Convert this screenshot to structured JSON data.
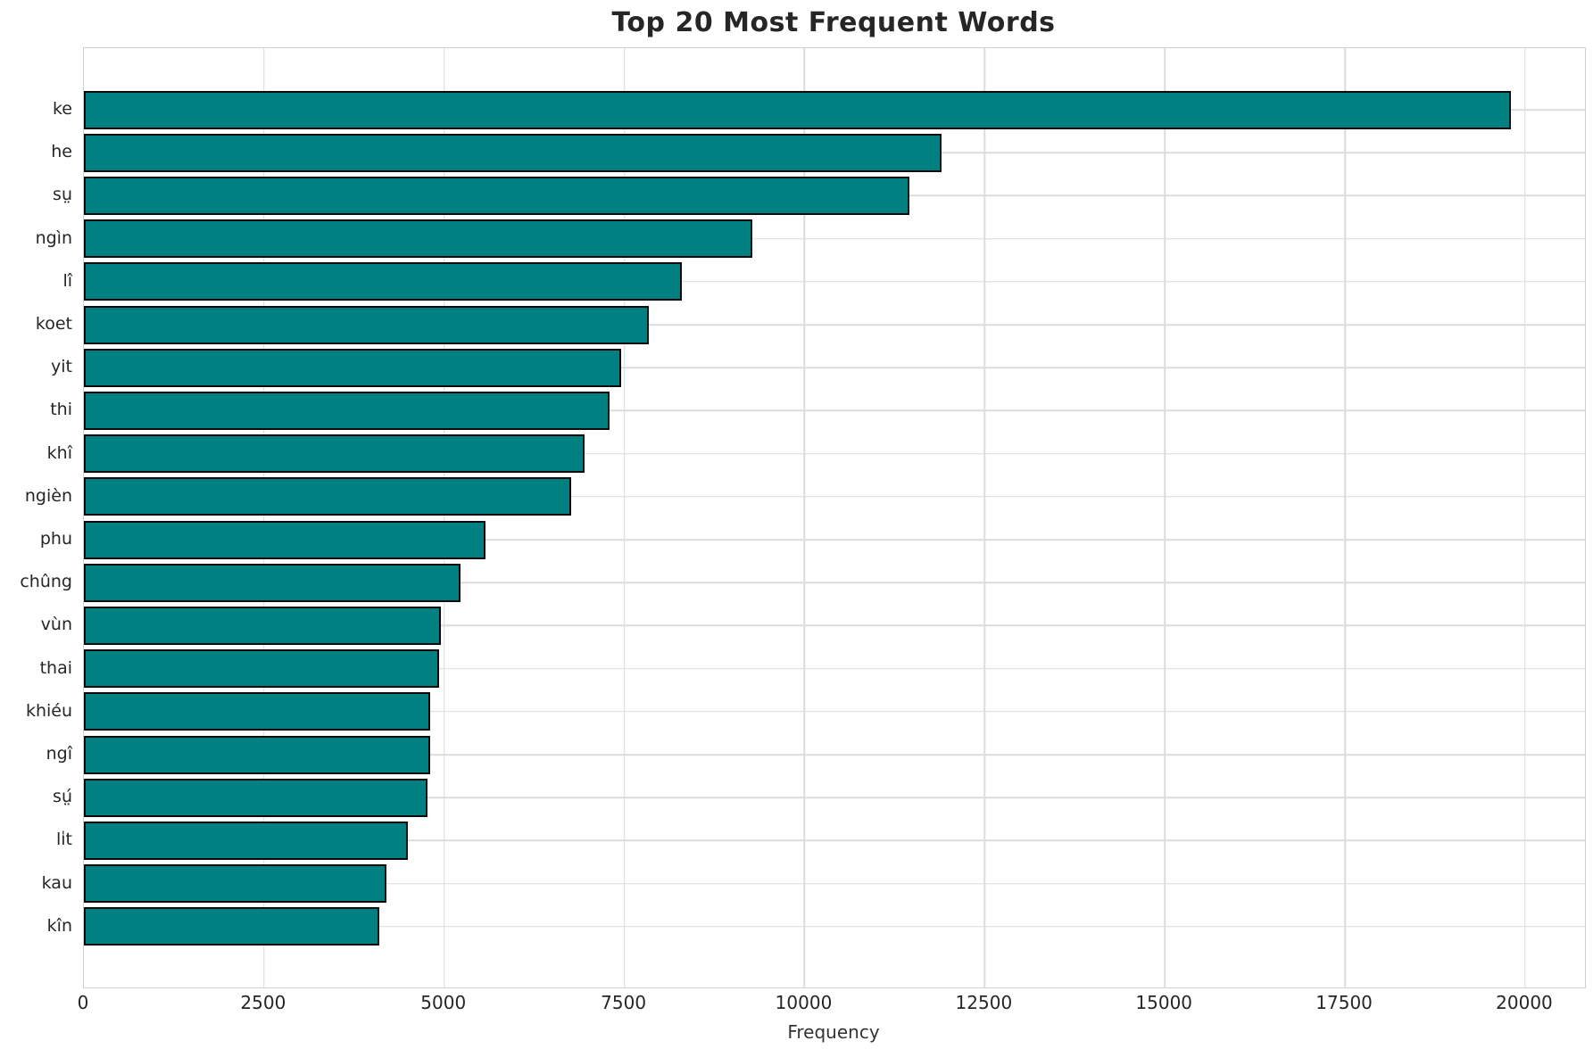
{
  "chart_data": {
    "type": "bar",
    "orientation": "horizontal",
    "title": "Top 20 Most Frequent Words",
    "xlabel": "Frequency",
    "ylabel": "",
    "categories": [
      "ke",
      "he",
      "sṳ",
      "ngìn",
      "lî",
      "koet",
      "yit",
      "thi",
      "khî",
      "ngièn",
      "phu",
      "chûng",
      "vùn",
      "thai",
      "khiéu",
      "ngî",
      "sṳ́",
      "li̍t",
      "kau",
      "kîn"
    ],
    "values": [
      19800,
      11900,
      11450,
      9280,
      8300,
      7840,
      7460,
      7300,
      6950,
      6760,
      5570,
      5230,
      4950,
      4930,
      4810,
      4800,
      4770,
      4490,
      4200,
      4100
    ],
    "xticks": [
      0,
      2500,
      5000,
      7500,
      10000,
      12500,
      15000,
      17500,
      20000
    ],
    "xlim": [
      0,
      20830
    ],
    "grid": true,
    "grid_axes": "both",
    "legend": false,
    "bar_color": "#008080",
    "bar_edge_color": "#0a0a0a",
    "grid_color": "#dcdcdc",
    "spine_color": "#d0d0d0",
    "background": "#ffffff",
    "text_color": "#262626"
  }
}
